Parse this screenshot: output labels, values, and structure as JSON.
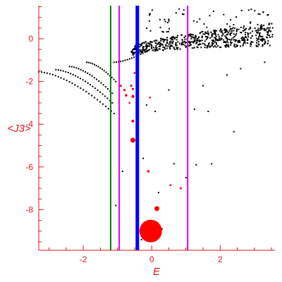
{
  "chart_data": {
    "type": "scatter",
    "title": "",
    "xlabel": "E",
    "ylabel": "<J3>",
    "xlim": [
      -3.3,
      3.6
    ],
    "ylim": [
      -9.9,
      1.55
    ],
    "x_ticks": [
      -2,
      0,
      2
    ],
    "x_tick_labels": [
      "-2",
      "0",
      "2"
    ],
    "y_ticks": [
      0,
      -2,
      -4,
      -6,
      -8
    ],
    "y_tick_labels": [
      "0",
      "-2",
      "-4",
      "-6",
      "-8"
    ],
    "grid": false,
    "legend": "none",
    "colors": {
      "axis": "#e0151b",
      "black_points": "#000000",
      "red_points": "#ff0000",
      "green_line": "#008000",
      "magenta_line": "#e000e0",
      "blue_line": "#0000ff"
    },
    "vertical_lines": [
      {
        "x": -1.2,
        "color": "#008000"
      },
      {
        "x": -0.95,
        "color": "#e000e0"
      },
      {
        "x": 1.05,
        "color": "#e000e0"
      },
      {
        "x": -0.42,
        "color": "#0000ff"
      }
    ],
    "red_points": [
      {
        "x": -0.03,
        "y": -9.0,
        "r": 16
      },
      {
        "x": 0.15,
        "y": -7.95,
        "r": 3.5
      },
      {
        "x": -0.55,
        "y": -4.75,
        "r": 3.5
      },
      {
        "x": -0.55,
        "y": -3.85,
        "r": 2
      },
      {
        "x": -0.55,
        "y": -2.7,
        "r": 2.2
      },
      {
        "x": -0.75,
        "y": -2.65,
        "r": 1.8
      },
      {
        "x": -0.6,
        "y": -2.2,
        "r": 1.6
      },
      {
        "x": -0.8,
        "y": -2.4,
        "r": 1.6
      },
      {
        "x": -0.55,
        "y": -2.35,
        "r": 1.6
      },
      {
        "x": -0.9,
        "y": -2.2,
        "r": 1.5
      },
      {
        "x": -0.1,
        "y": -6.2,
        "r": 1.8
      },
      {
        "x": 0.85,
        "y": -7.0,
        "r": 1.5
      },
      {
        "x": 0.55,
        "y": -6.85,
        "r": 1.4
      },
      {
        "x": -0.05,
        "y": -2.75,
        "r": 1.3
      },
      {
        "x": -0.5,
        "y": -1.6,
        "r": 1.4
      },
      {
        "x": -0.65,
        "y": -3.0,
        "r": 1.3
      }
    ],
    "black_branches": [
      {
        "x0": -3.3,
        "y0": -1.55,
        "x1": -1.1,
        "y1": -3.5,
        "n": 28
      },
      {
        "x0": -2.8,
        "y0": -1.45,
        "x1": -1.15,
        "y1": -3.0,
        "n": 24
      },
      {
        "x0": -2.4,
        "y0": -1.3,
        "x1": -1.15,
        "y1": -2.55,
        "n": 20
      },
      {
        "x0": -1.9,
        "y0": -1.1,
        "x1": -1.05,
        "y1": -2.0,
        "n": 16
      },
      {
        "x0": -1.1,
        "y0": -1.1,
        "x1": 0.0,
        "y1": -0.45,
        "n": 18
      }
    ],
    "black_band": {
      "x0": -0.6,
      "x1": 3.55,
      "y_center_start": -0.65,
      "y_center_end": 0.2,
      "spread": 0.55,
      "n": 600
    },
    "black_scattered": [
      {
        "x": -0.85,
        "y": -6.2
      },
      {
        "x": -1.05,
        "y": -7.8
      },
      {
        "x": -0.25,
        "y": -5.6
      },
      {
        "x": 0.65,
        "y": -5.85
      },
      {
        "x": 1.3,
        "y": -5.9
      },
      {
        "x": 1.75,
        "y": -5.85
      },
      {
        "x": 1.25,
        "y": -3.3
      },
      {
        "x": 1.65,
        "y": -3.4
      },
      {
        "x": 2.4,
        "y": -4.35
      },
      {
        "x": 0.3,
        "y": -8.9
      },
      {
        "x": 1.0,
        "y": -6.5
      },
      {
        "x": 0.1,
        "y": -3.4
      },
      {
        "x": -0.15,
        "y": -3.1
      },
      {
        "x": 0.5,
        "y": -2.4
      },
      {
        "x": 1.5,
        "y": -2.2
      },
      {
        "x": 2.2,
        "y": -1.7
      },
      {
        "x": 3.3,
        "y": -1.1
      },
      {
        "x": 2.6,
        "y": -1.4
      },
      {
        "x": -0.3,
        "y": -9.4
      },
      {
        "x": 0.2,
        "y": -7.2
      }
    ]
  }
}
